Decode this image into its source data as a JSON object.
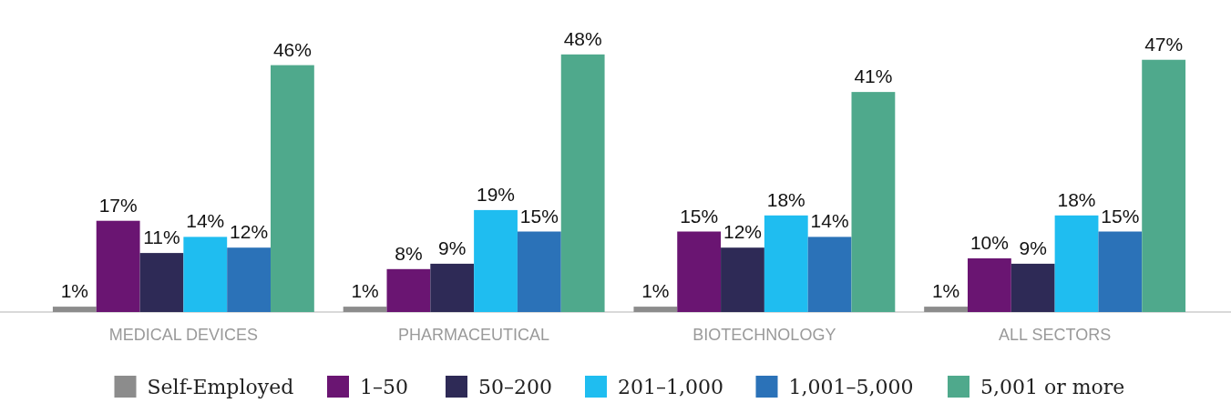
{
  "chart_data": {
    "type": "bar",
    "categories": [
      "MEDICAL DEVICES",
      "PHARMACEUTICAL",
      "BIOTECHNOLOGY",
      "ALL SECTORS"
    ],
    "series": [
      {
        "name": "Self-Employed",
        "color": "#8c8c8c",
        "values": [
          1,
          1,
          1,
          1
        ],
        "value_labels": [
          "1%",
          "1%",
          "1%",
          "1%"
        ]
      },
      {
        "name": "1–50",
        "color": "#6a1572",
        "values": [
          17,
          8,
          15,
          10
        ],
        "value_labels": [
          "17%",
          "8%",
          "15%",
          "10%"
        ]
      },
      {
        "name": "50–200",
        "color": "#2e2a56",
        "values": [
          11,
          9,
          12,
          9
        ],
        "value_labels": [
          "11%",
          "9%",
          "12%",
          "9%"
        ]
      },
      {
        "name": "201–1,000",
        "color": "#1fbdf0",
        "values": [
          14,
          19,
          18,
          18
        ],
        "value_labels": [
          "14%",
          "19%",
          "18%",
          "18%"
        ]
      },
      {
        "name": "1,001–5,000",
        "color": "#2b72b8",
        "values": [
          12,
          15,
          14,
          15
        ],
        "value_labels": [
          "12%",
          "15%",
          "14%",
          "15%"
        ]
      },
      {
        "name": "5,001 or more",
        "color": "#4fa98c",
        "values": [
          46,
          48,
          41,
          47
        ],
        "value_labels": [
          "46%",
          "48%",
          "41%",
          "47%"
        ]
      }
    ],
    "legend": "bottom"
  }
}
